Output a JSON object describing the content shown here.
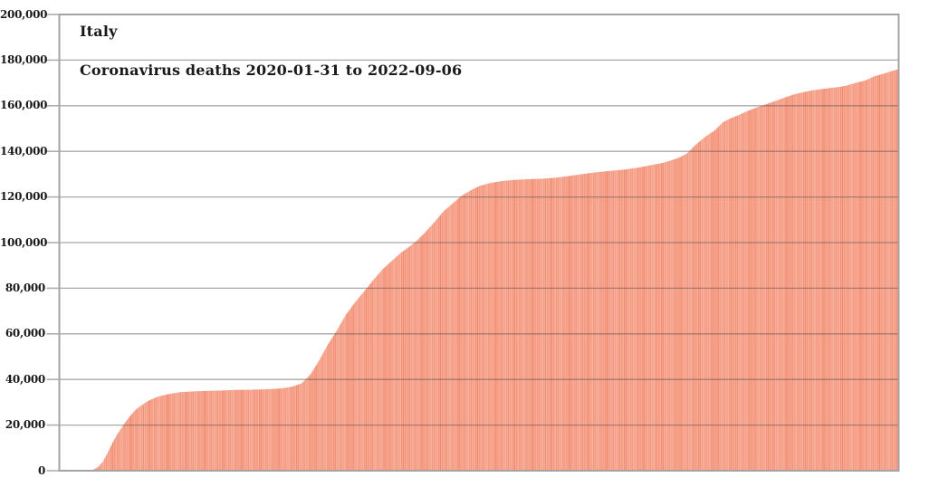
{
  "page": {
    "background": "#ffffff"
  },
  "chart_data": {
    "type": "bar",
    "title": "Italy",
    "subtitle": "Coronavirus deaths 2020-01-31 to 2022-09-06",
    "xlabel": "",
    "ylabel": "",
    "start_date": "2020-01-31",
    "end_date": "2022-09-06",
    "ylim": [
      0,
      200000
    ],
    "ytick_interval": 20000,
    "ytick_labels": [
      "200,000",
      "180,000",
      "160,000",
      "140,000",
      "120,000",
      "100,000",
      "80,000",
      "60,000",
      "40,000",
      "20,000",
      "0"
    ],
    "grid": true,
    "legend": "none",
    "xtick_labels_visible": false,
    "colors": {
      "bar_variants": [
        "#f69880",
        "#f9a88f",
        "#f0866a",
        "#f79d85",
        "#ee8065",
        "#f8a58c",
        "#f39177"
      ],
      "grid_over_white": "#9a9a9a",
      "grid_overlay": "rgba(88,82,78,0.5)",
      "frame": "#a3a3a3",
      "tick": "#aeaeae",
      "text": "#1a1a1a"
    },
    "anchors": [
      {
        "date": "2020-01-31",
        "value": 0
      },
      {
        "date": "2020-02-20",
        "value": 0
      },
      {
        "date": "2020-02-25",
        "value": 11
      },
      {
        "date": "2020-03-01",
        "value": 34
      },
      {
        "date": "2020-03-05",
        "value": 148
      },
      {
        "date": "2020-03-10",
        "value": 631
      },
      {
        "date": "2020-03-15",
        "value": 1809
      },
      {
        "date": "2020-03-20",
        "value": 4032
      },
      {
        "date": "2020-03-25",
        "value": 7503
      },
      {
        "date": "2020-03-31",
        "value": 12428
      },
      {
        "date": "2020-04-05",
        "value": 15887
      },
      {
        "date": "2020-04-10",
        "value": 18849
      },
      {
        "date": "2020-04-15",
        "value": 21645
      },
      {
        "date": "2020-04-20",
        "value": 24114
      },
      {
        "date": "2020-04-25",
        "value": 26384
      },
      {
        "date": "2020-04-30",
        "value": 27967
      },
      {
        "date": "2020-05-10",
        "value": 30560
      },
      {
        "date": "2020-05-20",
        "value": 32330
      },
      {
        "date": "2020-05-31",
        "value": 33415
      },
      {
        "date": "2020-06-15",
        "value": 34405
      },
      {
        "date": "2020-06-30",
        "value": 34767
      },
      {
        "date": "2020-07-15",
        "value": 34984
      },
      {
        "date": "2020-07-31",
        "value": 35141
      },
      {
        "date": "2020-08-15",
        "value": 35396
      },
      {
        "date": "2020-08-31",
        "value": 35483
      },
      {
        "date": "2020-09-15",
        "value": 35645
      },
      {
        "date": "2020-09-30",
        "value": 35894
      },
      {
        "date": "2020-10-10",
        "value": 36166
      },
      {
        "date": "2020-10-20",
        "value": 36832
      },
      {
        "date": "2020-10-31",
        "value": 38321
      },
      {
        "date": "2020-11-10",
        "value": 42330
      },
      {
        "date": "2020-11-20",
        "value": 48569
      },
      {
        "date": "2020-11-30",
        "value": 55576
      },
      {
        "date": "2020-12-10",
        "value": 61739
      },
      {
        "date": "2020-12-20",
        "value": 68447
      },
      {
        "date": "2020-12-31",
        "value": 74159
      },
      {
        "date": "2021-01-10",
        "value": 78755
      },
      {
        "date": "2021-01-20",
        "value": 83681
      },
      {
        "date": "2021-01-31",
        "value": 88516
      },
      {
        "date": "2021-02-10",
        "value": 92002
      },
      {
        "date": "2021-02-20",
        "value": 95486
      },
      {
        "date": "2021-02-28",
        "value": 97699
      },
      {
        "date": "2021-03-10",
        "value": 100811
      },
      {
        "date": "2021-03-20",
        "value": 104642
      },
      {
        "date": "2021-03-31",
        "value": 109346
      },
      {
        "date": "2021-04-10",
        "value": 113923
      },
      {
        "date": "2021-04-20",
        "value": 117243
      },
      {
        "date": "2021-04-30",
        "value": 120544
      },
      {
        "date": "2021-05-10",
        "value": 122833
      },
      {
        "date": "2021-05-20",
        "value": 124810
      },
      {
        "date": "2021-05-31",
        "value": 126002
      },
      {
        "date": "2021-06-15",
        "value": 127002
      },
      {
        "date": "2021-06-30",
        "value": 127542
      },
      {
        "date": "2021-07-15",
        "value": 127807
      },
      {
        "date": "2021-07-31",
        "value": 128029
      },
      {
        "date": "2021-08-15",
        "value": 128456
      },
      {
        "date": "2021-08-31",
        "value": 129290
      },
      {
        "date": "2021-09-15",
        "value": 130100
      },
      {
        "date": "2021-09-30",
        "value": 130870
      },
      {
        "date": "2021-10-15",
        "value": 131421
      },
      {
        "date": "2021-10-31",
        "value": 132004
      },
      {
        "date": "2021-11-15",
        "value": 132819
      },
      {
        "date": "2021-11-30",
        "value": 133931
      },
      {
        "date": "2021-12-15",
        "value": 135049
      },
      {
        "date": "2021-12-31",
        "value": 137091
      },
      {
        "date": "2022-01-10",
        "value": 139038
      },
      {
        "date": "2022-01-20",
        "value": 142963
      },
      {
        "date": "2022-01-31",
        "value": 146498
      },
      {
        "date": "2022-02-10",
        "value": 149097
      },
      {
        "date": "2022-02-20",
        "value": 152848
      },
      {
        "date": "2022-02-28",
        "value": 154416
      },
      {
        "date": "2022-03-10",
        "value": 156017
      },
      {
        "date": "2022-03-20",
        "value": 157785
      },
      {
        "date": "2022-03-31",
        "value": 159383
      },
      {
        "date": "2022-04-10",
        "value": 160748
      },
      {
        "date": "2022-04-20",
        "value": 162078
      },
      {
        "date": "2022-04-30",
        "value": 163507
      },
      {
        "date": "2022-05-10",
        "value": 164846
      },
      {
        "date": "2022-05-20",
        "value": 165805
      },
      {
        "date": "2022-05-31",
        "value": 166676
      },
      {
        "date": "2022-06-10",
        "value": 167253
      },
      {
        "date": "2022-06-20",
        "value": 167719
      },
      {
        "date": "2022-06-30",
        "value": 168138
      },
      {
        "date": "2022-07-10",
        "value": 168864
      },
      {
        "date": "2022-07-20",
        "value": 170037
      },
      {
        "date": "2022-07-31",
        "value": 171100
      },
      {
        "date": "2022-08-10",
        "value": 172904
      },
      {
        "date": "2022-08-20",
        "value": 174004
      },
      {
        "date": "2022-08-31",
        "value": 175346
      },
      {
        "date": "2022-09-06",
        "value": 175930
      }
    ]
  }
}
